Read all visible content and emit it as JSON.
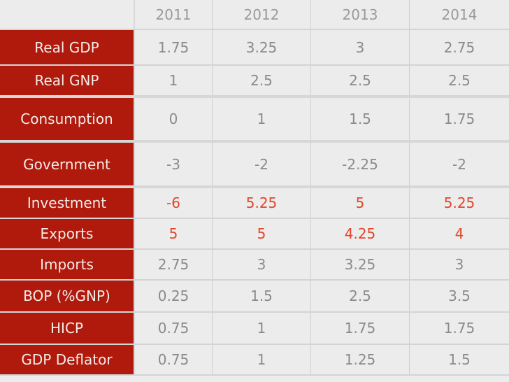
{
  "table": {
    "columns": [
      "",
      "2011",
      "2012",
      "2013",
      "2014"
    ],
    "rows": [
      {
        "label": "Real GDP",
        "values": [
          "1.75",
          "3.25",
          "3",
          "2.75"
        ]
      },
      {
        "label": "Real GNP",
        "values": [
          "1",
          "2.5",
          "2.5",
          "2.5"
        ]
      },
      {
        "label": "Consumption",
        "values": [
          "0",
          "1",
          "1.5",
          "1.75"
        ]
      },
      {
        "label": "Government",
        "values": [
          "-3",
          "-2",
          "-2.25",
          "-2"
        ]
      },
      {
        "label": "Investment",
        "values": [
          "-6",
          "5.25",
          "5",
          "5.25"
        ]
      },
      {
        "label": "Exports",
        "values": [
          "5",
          "5",
          "4.25",
          "4"
        ]
      },
      {
        "label": "Imports",
        "values": [
          "2.75",
          "3",
          "3.25",
          "3"
        ]
      },
      {
        "label": "BOP (%GNP)",
        "values": [
          "0.25",
          "1.5",
          "2.5",
          "3.5"
        ]
      },
      {
        "label": "HICP",
        "values": [
          "0.75",
          "1",
          "1.75",
          "1.75"
        ]
      },
      {
        "label": "GDP Deflator",
        "values": [
          "0.75",
          "1",
          "1.25",
          "1.5"
        ]
      }
    ]
  },
  "colors": {
    "label_background": "#b01a0c",
    "highlight_text": "#e2452a",
    "value_text": "#8a8a8a"
  }
}
